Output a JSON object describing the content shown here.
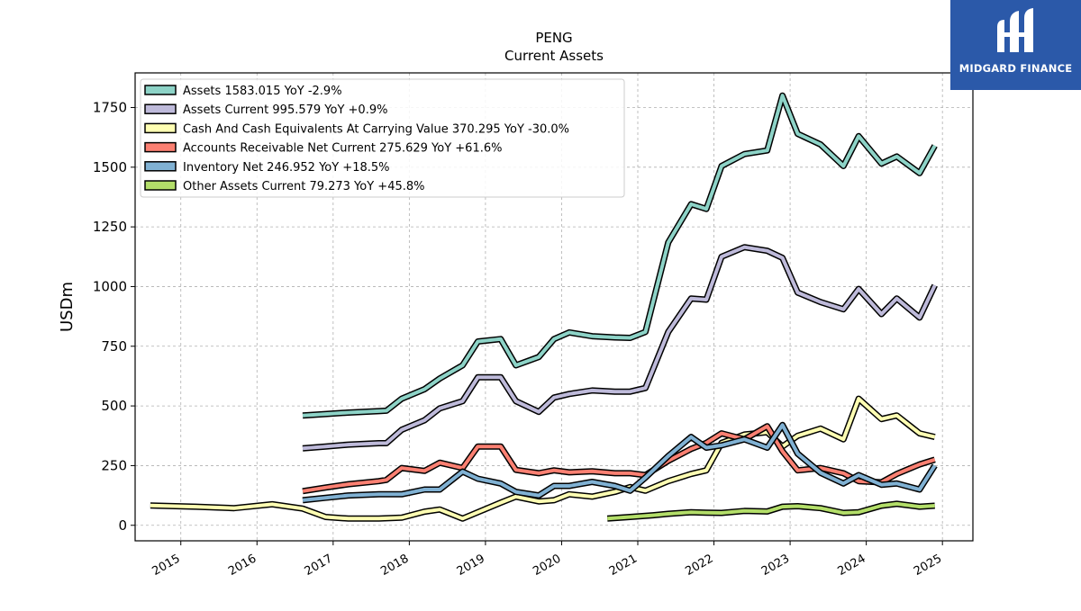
{
  "brand": {
    "name": "MIDGARD FINANCE",
    "color": "#2b59a9"
  },
  "chart_data": {
    "type": "line",
    "title": "PENG",
    "subtitle": "Current  Assets",
    "xlabel": "",
    "ylabel": "USDm",
    "xlim": [
      2014.4,
      2025.4
    ],
    "ylim": [
      -65,
      1895
    ],
    "x_ticks": [
      "2015",
      "2016",
      "2017",
      "2018",
      "2019",
      "2020",
      "2021",
      "2022",
      "2023",
      "2024",
      "2025"
    ],
    "y_ticks": [
      "0",
      "250",
      "500",
      "750",
      "1000",
      "1250",
      "1500",
      "1750"
    ],
    "grid": true,
    "legend_position": "top-left",
    "series": [
      {
        "name": "Assets  1583.015 YoY -2.9%",
        "color": "#8dd3c7",
        "points": [
          [
            2016.6,
            460
          ],
          [
            2016.9,
            466
          ],
          [
            2017.2,
            472
          ],
          [
            2017.6,
            478
          ],
          [
            2017.7,
            480
          ],
          [
            2017.9,
            530
          ],
          [
            2018.2,
            570
          ],
          [
            2018.4,
            615
          ],
          [
            2018.7,
            670
          ],
          [
            2018.9,
            770
          ],
          [
            2019.2,
            780
          ],
          [
            2019.4,
            670
          ],
          [
            2019.7,
            705
          ],
          [
            2019.9,
            780
          ],
          [
            2020.1,
            808
          ],
          [
            2020.4,
            792
          ],
          [
            2020.7,
            787
          ],
          [
            2020.9,
            785
          ],
          [
            2021.1,
            810
          ],
          [
            2021.4,
            1185
          ],
          [
            2021.7,
            1345
          ],
          [
            2021.9,
            1325
          ],
          [
            2022.1,
            1505
          ],
          [
            2022.4,
            1555
          ],
          [
            2022.7,
            1570
          ],
          [
            2022.9,
            1800
          ],
          [
            2023.1,
            1640
          ],
          [
            2023.4,
            1595
          ],
          [
            2023.7,
            1505
          ],
          [
            2023.9,
            1630
          ],
          [
            2024.2,
            1515
          ],
          [
            2024.4,
            1545
          ],
          [
            2024.7,
            1475
          ],
          [
            2024.9,
            1590
          ]
        ]
      },
      {
        "name": "Assets Current  995.579 YoY +0.9%",
        "color": "#bebada",
        "points": [
          [
            2016.6,
            322
          ],
          [
            2016.9,
            330
          ],
          [
            2017.2,
            338
          ],
          [
            2017.6,
            344
          ],
          [
            2017.7,
            344
          ],
          [
            2017.9,
            400
          ],
          [
            2018.2,
            440
          ],
          [
            2018.4,
            490
          ],
          [
            2018.7,
            520
          ],
          [
            2018.9,
            620
          ],
          [
            2019.2,
            620
          ],
          [
            2019.4,
            520
          ],
          [
            2019.7,
            475
          ],
          [
            2019.9,
            535
          ],
          [
            2020.1,
            550
          ],
          [
            2020.4,
            565
          ],
          [
            2020.7,
            560
          ],
          [
            2020.9,
            560
          ],
          [
            2021.1,
            575
          ],
          [
            2021.4,
            810
          ],
          [
            2021.7,
            950
          ],
          [
            2021.9,
            945
          ],
          [
            2022.1,
            1125
          ],
          [
            2022.4,
            1165
          ],
          [
            2022.7,
            1150
          ],
          [
            2022.9,
            1120
          ],
          [
            2023.1,
            975
          ],
          [
            2023.4,
            935
          ],
          [
            2023.7,
            905
          ],
          [
            2023.9,
            990
          ],
          [
            2024.2,
            885
          ],
          [
            2024.4,
            950
          ],
          [
            2024.7,
            870
          ],
          [
            2024.9,
            1005
          ]
        ]
      },
      {
        "name": "Cash And Cash Equivalents At Carrying Value  370.295 YoY -30.0%",
        "color": "#ffffb3",
        "points": [
          [
            2014.6,
            83
          ],
          [
            2015.2,
            78
          ],
          [
            2015.7,
            72
          ],
          [
            2016.2,
            88
          ],
          [
            2016.6,
            70
          ],
          [
            2016.9,
            35
          ],
          [
            2017.2,
            28
          ],
          [
            2017.6,
            28
          ],
          [
            2017.9,
            32
          ],
          [
            2018.2,
            57
          ],
          [
            2018.4,
            66
          ],
          [
            2018.7,
            28
          ],
          [
            2018.9,
            55
          ],
          [
            2019.2,
            95
          ],
          [
            2019.4,
            120
          ],
          [
            2019.7,
            100
          ],
          [
            2019.9,
            105
          ],
          [
            2020.1,
            130
          ],
          [
            2020.4,
            120
          ],
          [
            2020.7,
            140
          ],
          [
            2020.9,
            160
          ],
          [
            2021.1,
            145
          ],
          [
            2021.4,
            185
          ],
          [
            2021.7,
            215
          ],
          [
            2021.9,
            230
          ],
          [
            2022.1,
            345
          ],
          [
            2022.4,
            380
          ],
          [
            2022.7,
            390
          ],
          [
            2022.9,
            330
          ],
          [
            2023.1,
            375
          ],
          [
            2023.4,
            405
          ],
          [
            2023.7,
            360
          ],
          [
            2023.9,
            530
          ],
          [
            2024.2,
            445
          ],
          [
            2024.4,
            460
          ],
          [
            2024.7,
            385
          ],
          [
            2024.9,
            370
          ]
        ]
      },
      {
        "name": "Accounts Receivable Net Current  275.629 YoY +61.6%",
        "color": "#fb8072",
        "points": [
          [
            2016.6,
            143
          ],
          [
            2016.9,
            158
          ],
          [
            2017.2,
            172
          ],
          [
            2017.6,
            185
          ],
          [
            2017.7,
            190
          ],
          [
            2017.9,
            240
          ],
          [
            2018.2,
            228
          ],
          [
            2018.4,
            262
          ],
          [
            2018.7,
            240
          ],
          [
            2018.9,
            330
          ],
          [
            2019.2,
            330
          ],
          [
            2019.4,
            232
          ],
          [
            2019.7,
            218
          ],
          [
            2019.9,
            230
          ],
          [
            2020.1,
            222
          ],
          [
            2020.4,
            226
          ],
          [
            2020.7,
            218
          ],
          [
            2020.9,
            218
          ],
          [
            2021.1,
            210
          ],
          [
            2021.4,
            270
          ],
          [
            2021.7,
            320
          ],
          [
            2021.9,
            345
          ],
          [
            2022.1,
            385
          ],
          [
            2022.4,
            360
          ],
          [
            2022.7,
            415
          ],
          [
            2022.9,
            310
          ],
          [
            2023.1,
            230
          ],
          [
            2023.4,
            240
          ],
          [
            2023.7,
            218
          ],
          [
            2023.9,
            185
          ],
          [
            2024.2,
            180
          ],
          [
            2024.4,
            215
          ],
          [
            2024.7,
            255
          ],
          [
            2024.9,
            275
          ]
        ]
      },
      {
        "name": "Inventory Net  246.952 YoY +18.5%",
        "color": "#80b1d3",
        "points": [
          [
            2016.6,
            105
          ],
          [
            2016.9,
            115
          ],
          [
            2017.2,
            125
          ],
          [
            2017.6,
            130
          ],
          [
            2017.7,
            130
          ],
          [
            2017.9,
            130
          ],
          [
            2018.2,
            150
          ],
          [
            2018.4,
            150
          ],
          [
            2018.7,
            225
          ],
          [
            2018.9,
            195
          ],
          [
            2019.2,
            175
          ],
          [
            2019.4,
            140
          ],
          [
            2019.7,
            125
          ],
          [
            2019.9,
            165
          ],
          [
            2020.1,
            165
          ],
          [
            2020.4,
            182
          ],
          [
            2020.7,
            165
          ],
          [
            2020.9,
            145
          ],
          [
            2021.1,
            200
          ],
          [
            2021.4,
            290
          ],
          [
            2021.7,
            370
          ],
          [
            2021.9,
            325
          ],
          [
            2022.1,
            335
          ],
          [
            2022.4,
            360
          ],
          [
            2022.7,
            325
          ],
          [
            2022.9,
            420
          ],
          [
            2023.1,
            300
          ],
          [
            2023.4,
            220
          ],
          [
            2023.7,
            175
          ],
          [
            2023.9,
            210
          ],
          [
            2024.2,
            170
          ],
          [
            2024.4,
            175
          ],
          [
            2024.7,
            150
          ],
          [
            2024.9,
            250
          ]
        ]
      },
      {
        "name": "Other Assets Current  79.273 YoY +45.8%",
        "color": "#b3de69",
        "points": [
          [
            2020.6,
            28
          ],
          [
            2020.9,
            35
          ],
          [
            2021.2,
            42
          ],
          [
            2021.4,
            48
          ],
          [
            2021.7,
            55
          ],
          [
            2021.9,
            53
          ],
          [
            2022.1,
            52
          ],
          [
            2022.4,
            60
          ],
          [
            2022.7,
            58
          ],
          [
            2022.9,
            78
          ],
          [
            2023.1,
            80
          ],
          [
            2023.4,
            72
          ],
          [
            2023.7,
            52
          ],
          [
            2023.9,
            55
          ],
          [
            2024.2,
            82
          ],
          [
            2024.4,
            90
          ],
          [
            2024.7,
            78
          ],
          [
            2024.9,
            82
          ]
        ]
      }
    ]
  }
}
